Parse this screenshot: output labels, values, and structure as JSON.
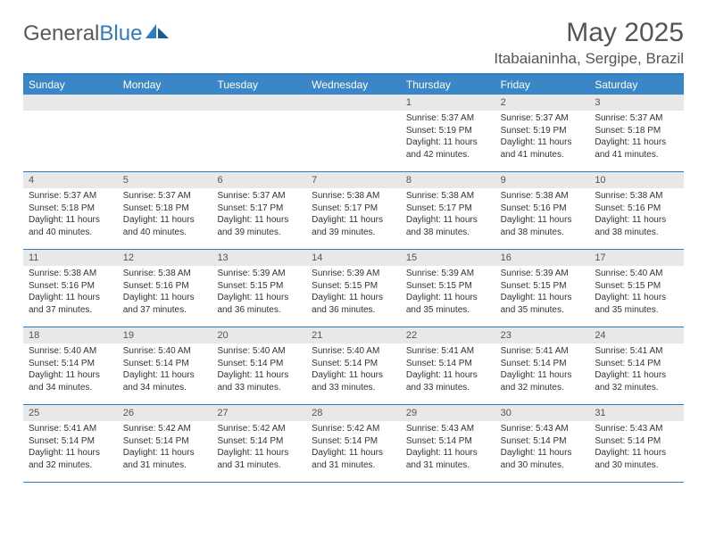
{
  "logo": {
    "text1": "General",
    "text2": "Blue"
  },
  "title": "May 2025",
  "location": "Itabaianinha, Sergipe, Brazil",
  "colors": {
    "headerBlue": "#3b86c6",
    "borderBlue": "#2e7cc0",
    "grayBand": "#e8e8e8",
    "text": "#333333"
  },
  "dayHeaders": [
    "Sunday",
    "Monday",
    "Tuesday",
    "Wednesday",
    "Thursday",
    "Friday",
    "Saturday"
  ],
  "weeks": [
    [
      {
        "n": "",
        "lines": []
      },
      {
        "n": "",
        "lines": []
      },
      {
        "n": "",
        "lines": []
      },
      {
        "n": "",
        "lines": []
      },
      {
        "n": "1",
        "lines": [
          "Sunrise: 5:37 AM",
          "Sunset: 5:19 PM",
          "Daylight: 11 hours and 42 minutes."
        ]
      },
      {
        "n": "2",
        "lines": [
          "Sunrise: 5:37 AM",
          "Sunset: 5:19 PM",
          "Daylight: 11 hours and 41 minutes."
        ]
      },
      {
        "n": "3",
        "lines": [
          "Sunrise: 5:37 AM",
          "Sunset: 5:18 PM",
          "Daylight: 11 hours and 41 minutes."
        ]
      }
    ],
    [
      {
        "n": "4",
        "lines": [
          "Sunrise: 5:37 AM",
          "Sunset: 5:18 PM",
          "Daylight: 11 hours and 40 minutes."
        ]
      },
      {
        "n": "5",
        "lines": [
          "Sunrise: 5:37 AM",
          "Sunset: 5:18 PM",
          "Daylight: 11 hours and 40 minutes."
        ]
      },
      {
        "n": "6",
        "lines": [
          "Sunrise: 5:37 AM",
          "Sunset: 5:17 PM",
          "Daylight: 11 hours and 39 minutes."
        ]
      },
      {
        "n": "7",
        "lines": [
          "Sunrise: 5:38 AM",
          "Sunset: 5:17 PM",
          "Daylight: 11 hours and 39 minutes."
        ]
      },
      {
        "n": "8",
        "lines": [
          "Sunrise: 5:38 AM",
          "Sunset: 5:17 PM",
          "Daylight: 11 hours and 38 minutes."
        ]
      },
      {
        "n": "9",
        "lines": [
          "Sunrise: 5:38 AM",
          "Sunset: 5:16 PM",
          "Daylight: 11 hours and 38 minutes."
        ]
      },
      {
        "n": "10",
        "lines": [
          "Sunrise: 5:38 AM",
          "Sunset: 5:16 PM",
          "Daylight: 11 hours and 38 minutes."
        ]
      }
    ],
    [
      {
        "n": "11",
        "lines": [
          "Sunrise: 5:38 AM",
          "Sunset: 5:16 PM",
          "Daylight: 11 hours and 37 minutes."
        ]
      },
      {
        "n": "12",
        "lines": [
          "Sunrise: 5:38 AM",
          "Sunset: 5:16 PM",
          "Daylight: 11 hours and 37 minutes."
        ]
      },
      {
        "n": "13",
        "lines": [
          "Sunrise: 5:39 AM",
          "Sunset: 5:15 PM",
          "Daylight: 11 hours and 36 minutes."
        ]
      },
      {
        "n": "14",
        "lines": [
          "Sunrise: 5:39 AM",
          "Sunset: 5:15 PM",
          "Daylight: 11 hours and 36 minutes."
        ]
      },
      {
        "n": "15",
        "lines": [
          "Sunrise: 5:39 AM",
          "Sunset: 5:15 PM",
          "Daylight: 11 hours and 35 minutes."
        ]
      },
      {
        "n": "16",
        "lines": [
          "Sunrise: 5:39 AM",
          "Sunset: 5:15 PM",
          "Daylight: 11 hours and 35 minutes."
        ]
      },
      {
        "n": "17",
        "lines": [
          "Sunrise: 5:40 AM",
          "Sunset: 5:15 PM",
          "Daylight: 11 hours and 35 minutes."
        ]
      }
    ],
    [
      {
        "n": "18",
        "lines": [
          "Sunrise: 5:40 AM",
          "Sunset: 5:14 PM",
          "Daylight: 11 hours and 34 minutes."
        ]
      },
      {
        "n": "19",
        "lines": [
          "Sunrise: 5:40 AM",
          "Sunset: 5:14 PM",
          "Daylight: 11 hours and 34 minutes."
        ]
      },
      {
        "n": "20",
        "lines": [
          "Sunrise: 5:40 AM",
          "Sunset: 5:14 PM",
          "Daylight: 11 hours and 33 minutes."
        ]
      },
      {
        "n": "21",
        "lines": [
          "Sunrise: 5:40 AM",
          "Sunset: 5:14 PM",
          "Daylight: 11 hours and 33 minutes."
        ]
      },
      {
        "n": "22",
        "lines": [
          "Sunrise: 5:41 AM",
          "Sunset: 5:14 PM",
          "Daylight: 11 hours and 33 minutes."
        ]
      },
      {
        "n": "23",
        "lines": [
          "Sunrise: 5:41 AM",
          "Sunset: 5:14 PM",
          "Daylight: 11 hours and 32 minutes."
        ]
      },
      {
        "n": "24",
        "lines": [
          "Sunrise: 5:41 AM",
          "Sunset: 5:14 PM",
          "Daylight: 11 hours and 32 minutes."
        ]
      }
    ],
    [
      {
        "n": "25",
        "lines": [
          "Sunrise: 5:41 AM",
          "Sunset: 5:14 PM",
          "Daylight: 11 hours and 32 minutes."
        ]
      },
      {
        "n": "26",
        "lines": [
          "Sunrise: 5:42 AM",
          "Sunset: 5:14 PM",
          "Daylight: 11 hours and 31 minutes."
        ]
      },
      {
        "n": "27",
        "lines": [
          "Sunrise: 5:42 AM",
          "Sunset: 5:14 PM",
          "Daylight: 11 hours and 31 minutes."
        ]
      },
      {
        "n": "28",
        "lines": [
          "Sunrise: 5:42 AM",
          "Sunset: 5:14 PM",
          "Daylight: 11 hours and 31 minutes."
        ]
      },
      {
        "n": "29",
        "lines": [
          "Sunrise: 5:43 AM",
          "Sunset: 5:14 PM",
          "Daylight: 11 hours and 31 minutes."
        ]
      },
      {
        "n": "30",
        "lines": [
          "Sunrise: 5:43 AM",
          "Sunset: 5:14 PM",
          "Daylight: 11 hours and 30 minutes."
        ]
      },
      {
        "n": "31",
        "lines": [
          "Sunrise: 5:43 AM",
          "Sunset: 5:14 PM",
          "Daylight: 11 hours and 30 minutes."
        ]
      }
    ]
  ]
}
